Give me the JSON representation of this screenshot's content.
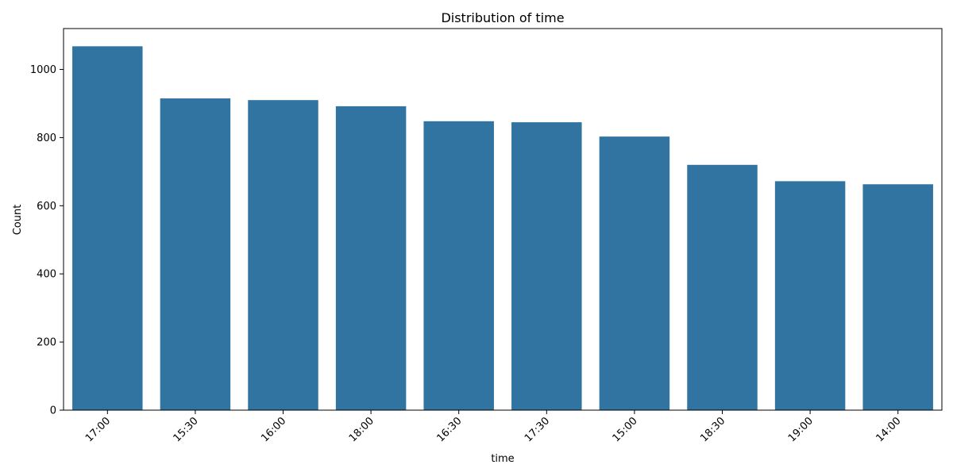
{
  "chart_data": {
    "type": "bar",
    "title": "Distribution of time",
    "xlabel": "time",
    "ylabel": "Count",
    "categories": [
      "17:00",
      "15:30",
      "16:00",
      "18:00",
      "16:30",
      "17:30",
      "15:00",
      "18:30",
      "19:00",
      "14:00"
    ],
    "values": [
      1068,
      915,
      910,
      892,
      848,
      845,
      803,
      720,
      672,
      663
    ],
    "ylim": [
      0,
      1120
    ],
    "yticks": [
      0,
      200,
      400,
      600,
      800,
      1000
    ],
    "bar_color": "#3274a1",
    "grid": false,
    "legend": "none"
  }
}
